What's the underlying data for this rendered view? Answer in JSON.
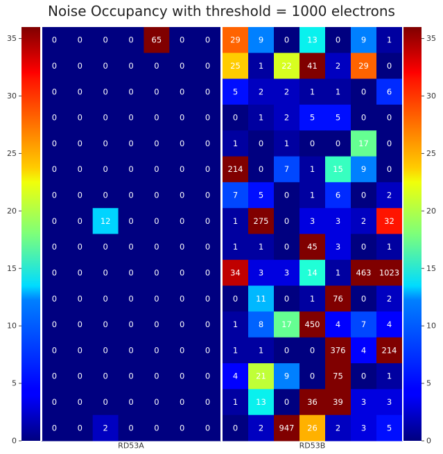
{
  "chart_data": {
    "type": "heatmap",
    "title": "Noise Occupancy with threshold = 1000 electrons",
    "colormap": "jet",
    "color_range": [
      0,
      36
    ],
    "colorbar_ticks": [
      0,
      5,
      10,
      15,
      20,
      25,
      30,
      35
    ],
    "y_ticks": [
      0,
      5,
      10,
      15,
      20,
      25,
      30,
      35
    ],
    "y_range": [
      0,
      36
    ],
    "panels": [
      {
        "name": "RD53A",
        "rows": [
          [
            0,
            0,
            0,
            0,
            65,
            0,
            0
          ],
          [
            0,
            0,
            0,
            0,
            0,
            0,
            0
          ],
          [
            0,
            0,
            0,
            0,
            0,
            0,
            0
          ],
          [
            0,
            0,
            0,
            0,
            0,
            0,
            0
          ],
          [
            0,
            0,
            0,
            0,
            0,
            0,
            0
          ],
          [
            0,
            0,
            0,
            0,
            0,
            0,
            0
          ],
          [
            0,
            0,
            0,
            0,
            0,
            0,
            0
          ],
          [
            0,
            0,
            12,
            0,
            0,
            0,
            0
          ],
          [
            0,
            0,
            0,
            0,
            0,
            0,
            0
          ],
          [
            0,
            0,
            0,
            0,
            0,
            0,
            0
          ],
          [
            0,
            0,
            0,
            0,
            0,
            0,
            0
          ],
          [
            0,
            0,
            0,
            0,
            0,
            0,
            0
          ],
          [
            0,
            0,
            0,
            0,
            0,
            0,
            0
          ],
          [
            0,
            0,
            0,
            0,
            0,
            0,
            0
          ],
          [
            0,
            0,
            0,
            0,
            0,
            0,
            0
          ],
          [
            0,
            0,
            2,
            0,
            0,
            0,
            0
          ]
        ]
      },
      {
        "name": "RD53B",
        "rows": [
          [
            29,
            9,
            0,
            13,
            0,
            9,
            1
          ],
          [
            25,
            1,
            22,
            41,
            2,
            29,
            0
          ],
          [
            5,
            2,
            2,
            1,
            1,
            0,
            6
          ],
          [
            0,
            1,
            2,
            5,
            5,
            0,
            0
          ],
          [
            1,
            0,
            1,
            0,
            0,
            17,
            0
          ],
          [
            214,
            0,
            7,
            1,
            15,
            9,
            0
          ],
          [
            7,
            5,
            0,
            1,
            6,
            0,
            2
          ],
          [
            1,
            275,
            0,
            3,
            3,
            2,
            32
          ],
          [
            1,
            1,
            0,
            45,
            3,
            0,
            1
          ],
          [
            34,
            3,
            3,
            14,
            1,
            463,
            1023
          ],
          [
            0,
            11,
            0,
            1,
            76,
            0,
            2
          ],
          [
            1,
            8,
            17,
            450,
            4,
            7,
            4
          ],
          [
            1,
            1,
            0,
            0,
            376,
            4,
            214
          ],
          [
            4,
            21,
            9,
            0,
            75,
            0,
            1
          ],
          [
            1,
            13,
            0,
            36,
            39,
            3,
            3
          ],
          [
            0,
            2,
            947,
            26,
            2,
            3,
            5
          ]
        ]
      }
    ]
  }
}
